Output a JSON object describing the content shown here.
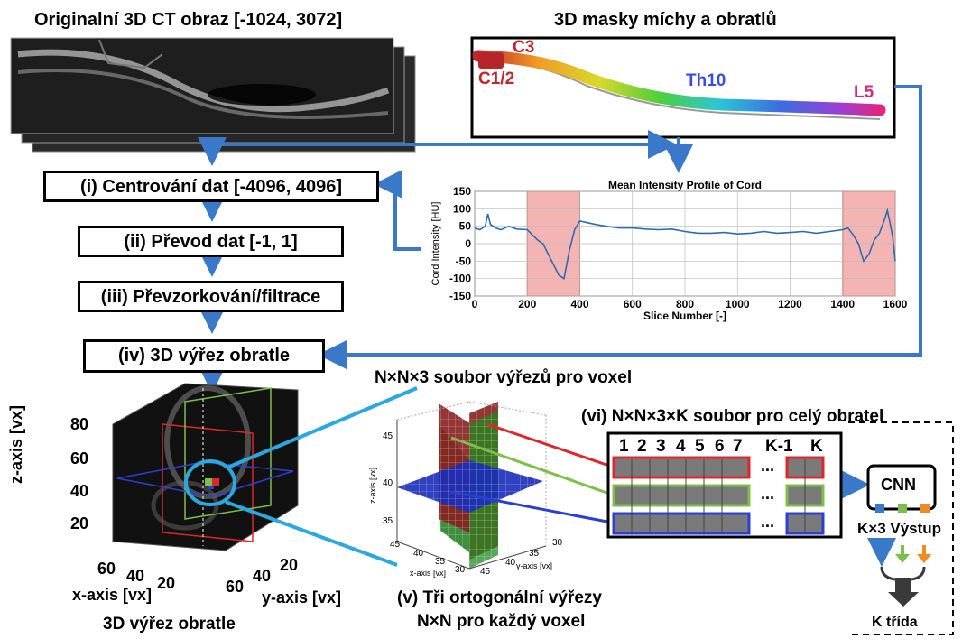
{
  "titles": {
    "ct": "Originalní 3D CT obraz [-1024, 3072]",
    "masks": "3D masky míchy a obratlů",
    "crop_set": "N×N×3 soubor výřezů pro voxel",
    "full_set": "(vi) N×N×3×K soubor pro celý obratel",
    "crop3d": "3D výřez obratle",
    "ortho_line1": "(v) Tři ortogonální výřezy",
    "ortho_line2": "N×N pro každý voxel"
  },
  "steps": [
    "(i) Centrování dat [-4096, 4096]",
    "(ii) Převod dat [-1, 1]",
    "(iii) Převzorkování/filtrace",
    "(iv) 3D výřez obratle"
  ],
  "mask_labels": {
    "c3": "C3",
    "c12": "C1/2",
    "th10": "Th10",
    "l5": "L5"
  },
  "chart_data": {
    "type": "line",
    "title": "Mean Intensity Profile of Cord",
    "xlabel": "Slice Number [-]",
    "ylabel": "Cord Intensity [HU]",
    "xlim": [
      0,
      1600
    ],
    "ylim": [
      -150,
      150
    ],
    "xticks": [
      0,
      200,
      400,
      600,
      800,
      1000,
      1200,
      1400,
      1600
    ],
    "yticks": [
      -150,
      -100,
      -50,
      0,
      50,
      100,
      150
    ],
    "grid": true,
    "highlight_ranges": [
      [
        200,
        400
      ],
      [
        1400,
        1600
      ]
    ],
    "series": [
      {
        "color": "#2b6cb0",
        "x": [
          0,
          20,
          40,
          50,
          60,
          80,
          100,
          130,
          160,
          200,
          220,
          240,
          260,
          280,
          300,
          320,
          340,
          360,
          380,
          400,
          430,
          460,
          500,
          550,
          600,
          650,
          700,
          750,
          800,
          850,
          900,
          950,
          1000,
          1050,
          1100,
          1150,
          1200,
          1250,
          1300,
          1350,
          1400,
          1420,
          1440,
          1460,
          1480,
          1500,
          1520,
          1540,
          1560,
          1570,
          1580,
          1590,
          1600
        ],
        "y": [
          45,
          40,
          50,
          85,
          55,
          45,
          40,
          50,
          42,
          40,
          25,
          10,
          0,
          -30,
          -60,
          -90,
          -100,
          -20,
          40,
          65,
          60,
          55,
          50,
          45,
          45,
          42,
          40,
          42,
          35,
          30,
          30,
          32,
          28,
          30,
          35,
          30,
          32,
          35,
          30,
          35,
          40,
          45,
          25,
          0,
          -50,
          -30,
          10,
          30,
          70,
          95,
          60,
          20,
          -50
        ]
      }
    ]
  },
  "slice_numbers": [
    "1",
    "2",
    "3",
    "4",
    "5",
    "6",
    "7",
    "K-1",
    "K"
  ],
  "ellipsis": "...",
  "cnn": {
    "label": "CNN",
    "output": "K×3 Výstup",
    "classes": "K třída"
  },
  "crop3d_axes": {
    "z_label": "z-axis [vx]",
    "x_label": "x-axis [vx]",
    "y_label": "y-axis [vx]",
    "z_ticks": [
      "80",
      "60",
      "40",
      "20"
    ],
    "x_ticks": [
      "60",
      "40",
      "20"
    ],
    "y_ticks": [
      "60",
      "40",
      "20"
    ]
  },
  "ortho_axes": {
    "z_label": "z-axis [vx]",
    "x_label": "x-axis [vx]",
    "y_label": "y-axis [vx]",
    "z_ticks": [
      "45",
      "40",
      "35"
    ],
    "x_ticks": [
      "45",
      "40",
      "35",
      "30"
    ],
    "y_ticks": [
      "45",
      "40",
      "35",
      "30"
    ]
  },
  "colors": {
    "arrow": "#3a78c9",
    "cyan": "#2ba8e0",
    "red": "#e0262b",
    "green": "#7cc04a",
    "blue": "#2b3fd6",
    "orange": "#f08a24",
    "highlight": "#f4a7a7"
  }
}
